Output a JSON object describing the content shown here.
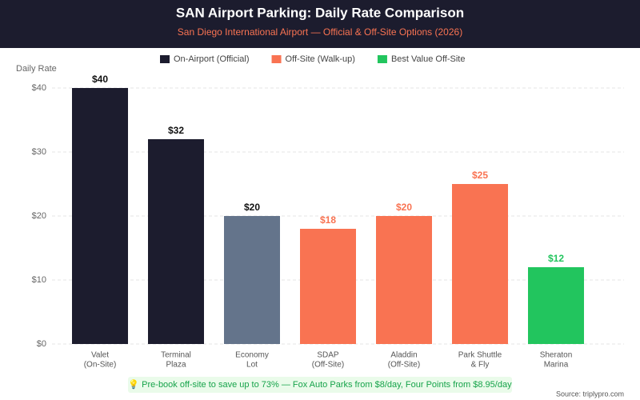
{
  "chart_data": {
    "type": "bar",
    "title": "SAN Airport Parking: Daily Rate Comparison",
    "subtitle": "San Diego International Airport — Official & Off-Site Options (2026)",
    "y_label": "Daily Rate",
    "categories": [
      [
        "Valet",
        "(On-Site)"
      ],
      [
        "Terminal",
        "Plaza"
      ],
      [
        "Economy",
        "Lot"
      ],
      [
        "SDAP",
        "(Off-Site)"
      ],
      [
        "Aladdin",
        "(Off-Site)"
      ],
      [
        "Park Shuttle",
        "& Fly"
      ],
      [
        "Sheraton",
        "Marina"
      ]
    ],
    "values": [
      40,
      32,
      20,
      18,
      20,
      25,
      12
    ],
    "value_labels": [
      "$40",
      "$32",
      "$20",
      "$18",
      "$20",
      "$25",
      "$12"
    ],
    "colors": [
      "#1c1c2e",
      "#1c1c2e",
      "#64748b",
      "#f97352",
      "#f97352",
      "#f97352",
      "#22c55e"
    ],
    "label_colors": [
      "#111111",
      "#111111",
      "#111111",
      "#f97352",
      "#f97352",
      "#f97352",
      "#22c55e"
    ],
    "legend": [
      {
        "name": "On-Airport (Official)",
        "color": "#1c1c2e"
      },
      {
        "name": "Off-Site (Walk-up)",
        "color": "#f97352"
      },
      {
        "name": "Best Value Off-Site",
        "color": "#22c55e"
      }
    ],
    "ylim": [
      0,
      40
    ],
    "yticks": [
      {
        "value": 0,
        "label": "$0"
      },
      {
        "value": 10,
        "label": "$10"
      },
      {
        "value": 20,
        "label": "$20"
      },
      {
        "value": 30,
        "label": "$30"
      },
      {
        "value": 40,
        "label": "$40"
      }
    ],
    "grid": true,
    "note": "💡 Pre-book off-site to save up to 73% — Fox Auto Parks from $8/day, Four Points from $8.95/day",
    "source": "Source: triplypro.com"
  }
}
